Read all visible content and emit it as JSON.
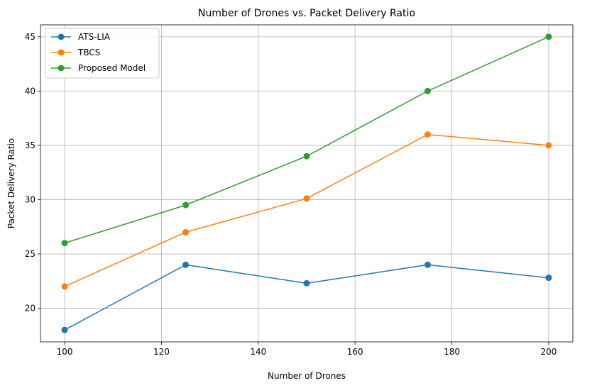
{
  "chart_data": {
    "type": "line",
    "title": "Number of Drones vs. Packet Delivery Ratio",
    "xlabel": "Number of Drones",
    "ylabel": "Packet Delivery Ratio",
    "x": [
      100,
      125,
      150,
      175,
      200
    ],
    "xlim": [
      95,
      205
    ],
    "ylim": [
      16.9,
      46.1
    ],
    "xticks": [
      100,
      120,
      140,
      160,
      180,
      200
    ],
    "yticks": [
      20,
      25,
      30,
      35,
      40,
      45
    ],
    "grid": true,
    "legend_position": "top-left",
    "series": [
      {
        "name": "ATS-LIA",
        "color": "#1f77b4",
        "values": [
          18,
          24,
          22.3,
          24,
          22.8
        ]
      },
      {
        "name": "TBCS",
        "color": "#ff7f0e",
        "values": [
          22,
          27,
          30.1,
          36,
          35
        ]
      },
      {
        "name": "Proposed Model",
        "color": "#2ca02c",
        "values": [
          26,
          29.5,
          34,
          40,
          45
        ]
      }
    ]
  }
}
